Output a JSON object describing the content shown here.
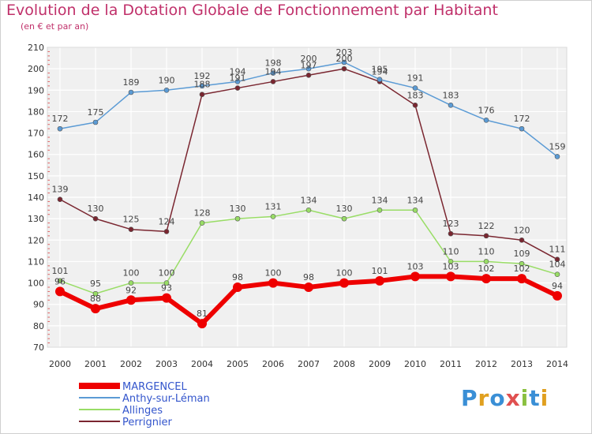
{
  "title": "Evolution de la Dotation Globale de Fonctionnement par Habitant",
  "subtitle": "(en € et par an)",
  "logo": {
    "text": "Proxiti",
    "colors": [
      "#3a8fd6",
      "#e0a020",
      "#3a8fd6",
      "#e05050",
      "#8ac040",
      "#3a8fd6",
      "#e0a020"
    ]
  },
  "chart_data": {
    "type": "line",
    "title": "Evolution de la Dotation Globale de Fonctionnement par Habitant",
    "ylabel": "(en € et par an)",
    "xlabel": "",
    "categories": [
      "2000",
      "2001",
      "2002",
      "2003",
      "2004",
      "2005",
      "2006",
      "2007",
      "2008",
      "2009",
      "2010",
      "2011",
      "2012",
      "2013",
      "2014"
    ],
    "ylim": [
      70,
      210
    ],
    "yticks": [
      70,
      80,
      90,
      100,
      110,
      120,
      130,
      140,
      150,
      160,
      170,
      180,
      190,
      200,
      210
    ],
    "grid": true,
    "legend_position": "bottom-left",
    "series": [
      {
        "name": "MARGENCEL",
        "color": "#ee0000",
        "values": [
          96,
          88,
          92,
          93,
          81,
          98,
          100,
          98,
          100,
          101,
          103,
          103,
          102,
          102,
          94
        ]
      },
      {
        "name": "Anthy-sur-Léman",
        "color": "#5b9bd5",
        "values": [
          172,
          175,
          189,
          190,
          192,
          194,
          198,
          200,
          203,
          195,
          191,
          183,
          176,
          172,
          159
        ]
      },
      {
        "name": "Allinges",
        "color": "#99dd66",
        "values": [
          101,
          95,
          100,
          100,
          128,
          130,
          131,
          134,
          130,
          134,
          134,
          110,
          110,
          109,
          104
        ]
      },
      {
        "name": "Perrignier",
        "color": "#7a2630",
        "values": [
          139,
          130,
          125,
          124,
          188,
          191,
          194,
          197,
          200,
          194,
          183,
          123,
          122,
          120,
          111
        ]
      }
    ]
  }
}
